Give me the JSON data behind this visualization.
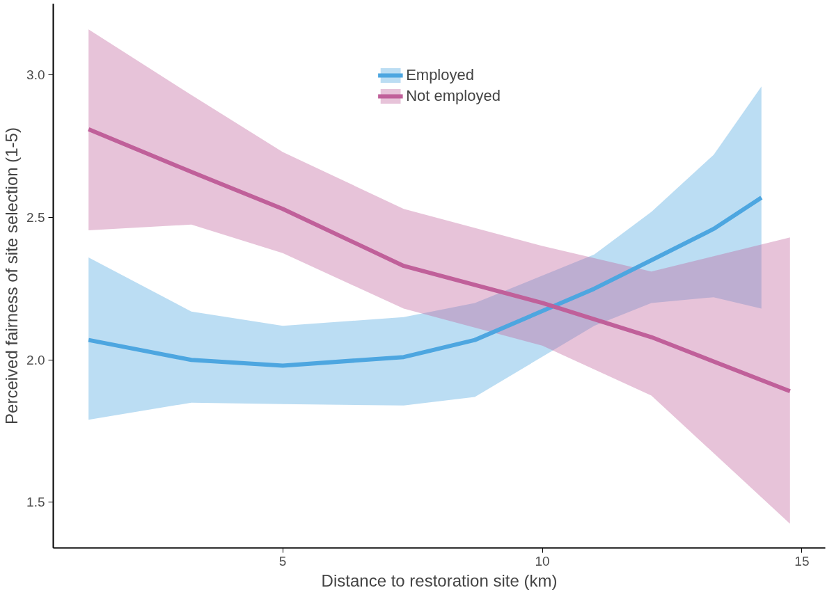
{
  "chart_data": {
    "type": "line",
    "xlabel": "Distance to restoration site (km)",
    "ylabel": "Perceived fairness of site selection (1-5)",
    "xlim": [
      0.58,
      15.45
    ],
    "ylim": [
      1.34,
      3.25
    ],
    "xticks": [
      5,
      10,
      15
    ],
    "yticks": [
      {
        "value": 1.5,
        "label": "1.5"
      },
      {
        "value": 2.0,
        "label": "2.0"
      },
      {
        "value": 2.5,
        "label": "2.5"
      },
      {
        "value": 3.0,
        "label": "3.0"
      }
    ],
    "grid": false,
    "legend": "top",
    "marker": "none",
    "line_style": "solid",
    "series": [
      {
        "name": "Employed",
        "color": "#4da6e0",
        "x": [
          1.26,
          3.24,
          5,
          7.33,
          8.7,
          11,
          12.1,
          13.3,
          14.22
        ],
        "values": [
          2.07,
          2.0,
          1.98,
          2.01,
          2.07,
          2.25,
          2.35,
          2.46,
          2.57
        ],
        "lower": [
          1.79,
          1.85,
          1.845,
          1.84,
          1.87,
          2.12,
          2.2,
          2.22,
          2.18
        ],
        "upper": [
          2.36,
          2.17,
          2.12,
          2.15,
          2.2,
          2.37,
          2.52,
          2.72,
          2.96
        ]
      },
      {
        "name": "Not employed",
        "color": "#c0609a",
        "x": [
          1.26,
          3.24,
          5,
          7.33,
          10,
          12.1,
          14.77
        ],
        "values": [
          2.81,
          2.66,
          2.53,
          2.33,
          2.2,
          2.08,
          1.89
        ],
        "lower": [
          2.455,
          2.475,
          2.375,
          2.18,
          2.05,
          1.875,
          1.425
        ],
        "upper": [
          3.16,
          2.93,
          2.73,
          2.53,
          2.4,
          2.31,
          2.43
        ]
      }
    ]
  }
}
